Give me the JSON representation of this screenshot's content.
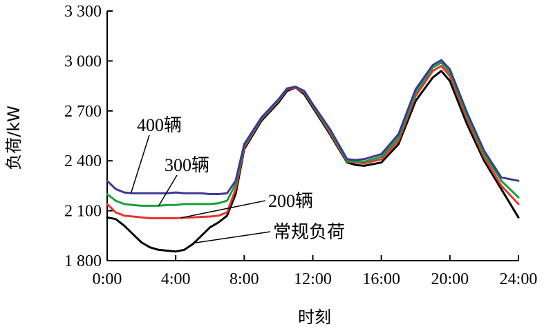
{
  "chart_data": {
    "type": "line",
    "xlabel": "时刻",
    "ylabel": "负荷/kW",
    "xlim": [
      0,
      24
    ],
    "ylim": [
      1800,
      3300
    ],
    "x_ticks": [
      0,
      4,
      8,
      12,
      16,
      20,
      24
    ],
    "x_tick_labels": [
      "0:00",
      "4:00",
      "8:00",
      "12:00",
      "16:00",
      "20:00",
      "24:00"
    ],
    "y_ticks": [
      1800,
      2100,
      2400,
      2700,
      3000,
      3300
    ],
    "y_tick_labels": [
      "1 800",
      "2 100",
      "2 400",
      "2 700",
      "3 000",
      "3 300"
    ],
    "grid": false,
    "series": [
      {
        "name": "常规负荷",
        "color": "#000000",
        "x": [
          0,
          0.5,
          1,
          1.5,
          2,
          2.5,
          3,
          3.5,
          4,
          4.5,
          5,
          5.5,
          6,
          6.5,
          7,
          7.5,
          8,
          9,
          10,
          10.5,
          11,
          11.5,
          12,
          13,
          14,
          14.5,
          15,
          16,
          17,
          18,
          19,
          19.5,
          20,
          21,
          22,
          23,
          24
        ],
        "y": [
          2060,
          2050,
          2010,
          1960,
          1910,
          1880,
          1865,
          1860,
          1855,
          1865,
          1900,
          1950,
          2000,
          2030,
          2070,
          2200,
          2470,
          2640,
          2750,
          2820,
          2840,
          2800,
          2720,
          2560,
          2390,
          2375,
          2370,
          2390,
          2500,
          2760,
          2900,
          2940,
          2880,
          2620,
          2400,
          2230,
          2060
        ]
      },
      {
        "name": "200辆",
        "color": "#e8342a",
        "x": [
          0,
          0.5,
          1,
          1.5,
          2,
          2.5,
          3,
          3.5,
          4,
          4.5,
          5,
          5.5,
          6,
          6.5,
          7,
          7.5,
          8,
          9,
          10,
          10.5,
          11,
          11.5,
          12,
          13,
          14,
          14.5,
          15,
          16,
          17,
          18,
          19,
          19.5,
          20,
          21,
          22,
          23,
          24
        ],
        "y": [
          2140,
          2090,
          2070,
          2065,
          2060,
          2055,
          2055,
          2055,
          2055,
          2058,
          2060,
          2063,
          2065,
          2070,
          2090,
          2230,
          2480,
          2650,
          2760,
          2830,
          2840,
          2810,
          2730,
          2570,
          2395,
          2390,
          2385,
          2410,
          2520,
          2790,
          2940,
          2970,
          2910,
          2650,
          2420,
          2250,
          2140
        ]
      },
      {
        "name": "300辆",
        "color": "#1a9f3a",
        "x": [
          0,
          0.5,
          1,
          1.5,
          2,
          2.5,
          3,
          3.5,
          4,
          4.5,
          5,
          5.5,
          6,
          6.5,
          7,
          7.5,
          8,
          9,
          10,
          10.5,
          11,
          11.5,
          12,
          13,
          14,
          14.5,
          15,
          16,
          17,
          18,
          19,
          19.5,
          20,
          21,
          22,
          23,
          24
        ],
        "y": [
          2200,
          2160,
          2140,
          2135,
          2130,
          2130,
          2130,
          2135,
          2135,
          2140,
          2140,
          2140,
          2140,
          2145,
          2160,
          2260,
          2490,
          2655,
          2765,
          2835,
          2845,
          2815,
          2735,
          2580,
          2400,
          2395,
          2395,
          2425,
          2540,
          2810,
          2960,
          2990,
          2930,
          2670,
          2440,
          2280,
          2180
        ]
      },
      {
        "name": "400辆",
        "color": "#3d3896",
        "x": [
          0,
          0.5,
          1,
          1.5,
          2,
          2.5,
          3,
          3.5,
          4,
          4.5,
          5,
          5.5,
          6,
          6.5,
          7,
          7.5,
          8,
          9,
          10,
          10.5,
          11,
          11.5,
          12,
          13,
          14,
          14.5,
          15,
          16,
          17,
          18,
          19,
          19.5,
          20,
          21,
          22,
          23,
          24
        ],
        "y": [
          2280,
          2230,
          2210,
          2205,
          2205,
          2205,
          2205,
          2205,
          2210,
          2205,
          2205,
          2205,
          2200,
          2200,
          2205,
          2280,
          2500,
          2660,
          2770,
          2835,
          2845,
          2820,
          2740,
          2590,
          2410,
          2405,
          2410,
          2440,
          2560,
          2830,
          2975,
          3005,
          2950,
          2690,
          2460,
          2300,
          2280
        ]
      }
    ],
    "annotations": [
      {
        "text": "400辆",
        "target": [
          1.4,
          2208
        ]
      },
      {
        "text": "300辆",
        "target": [
          3.0,
          2128
        ]
      },
      {
        "text": "200辆",
        "target": [
          4.3,
          2057
        ]
      },
      {
        "text": "常规负荷",
        "target": [
          5.0,
          1905
        ]
      }
    ]
  }
}
